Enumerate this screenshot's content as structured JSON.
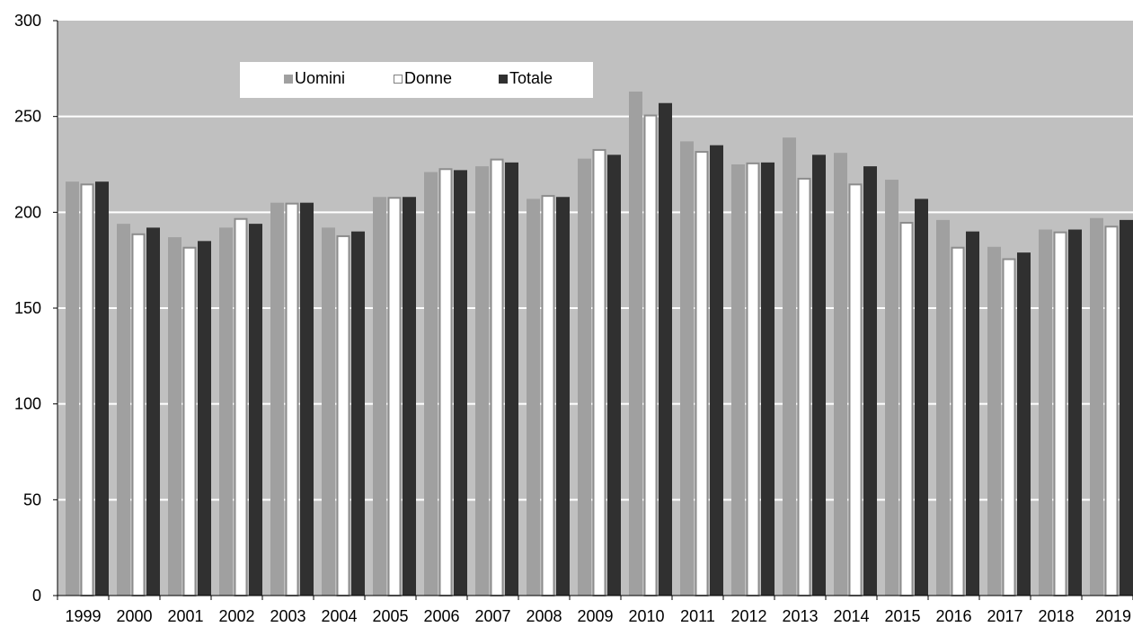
{
  "chart_data": {
    "type": "bar",
    "title": "",
    "xlabel": "",
    "ylabel": "",
    "ylim": [
      0,
      300
    ],
    "yticks": [
      0,
      50,
      100,
      150,
      200,
      250,
      300
    ],
    "grid": true,
    "legend_position": "top-left",
    "categories": [
      "1999",
      "2000",
      "2001",
      "2002",
      "2003",
      "2004",
      "2005",
      "2006",
      "2007",
      "2008",
      "2009",
      "2010",
      "2011",
      "2012",
      "2013",
      "2014",
      "2015",
      "2016",
      "2017",
      "2018",
      "2019"
    ],
    "series": [
      {
        "name": "Uomini",
        "color": "#a0a0a0",
        "values": [
          216,
          194,
          187,
          192,
          205,
          192,
          208,
          221,
          224,
          207,
          228,
          263,
          237,
          225,
          239,
          231,
          217,
          196,
          182,
          191,
          197
        ]
      },
      {
        "name": "Donne",
        "color": "#ffffff",
        "values": [
          215,
          189,
          182,
          197,
          205,
          188,
          208,
          223,
          228,
          209,
          233,
          251,
          232,
          226,
          218,
          215,
          195,
          182,
          176,
          190,
          193
        ]
      },
      {
        "name": "Totale",
        "color": "#303030",
        "values": [
          216,
          192,
          185,
          194,
          205,
          190,
          208,
          222,
          226,
          208,
          230,
          257,
          235,
          226,
          230,
          224,
          207,
          190,
          179,
          191,
          196
        ]
      }
    ]
  }
}
